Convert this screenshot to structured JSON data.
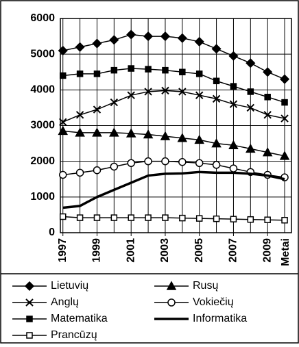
{
  "chart_data": {
    "type": "line",
    "x": [
      1997,
      1998,
      1999,
      2000,
      2001,
      2002,
      2003,
      2004,
      2005,
      2006,
      2007,
      2008,
      2009,
      2010
    ],
    "xlabel": "Metai",
    "xlim": [
      1996.85,
      2010.4
    ],
    "xticks": [
      1997,
      1999,
      2001,
      2003,
      2005,
      2007,
      2009
    ],
    "ylim": [
      0,
      6000
    ],
    "yticks": [
      0,
      1000,
      2000,
      3000,
      4000,
      5000,
      6000
    ],
    "grid": true,
    "series": [
      {
        "name": "Lietuvių",
        "color": "#000000",
        "marker": "diamond",
        "values": [
          5100,
          5200,
          5300,
          5400,
          5550,
          5500,
          5500,
          5450,
          5350,
          5150,
          4950,
          4750,
          4500,
          4300
        ]
      },
      {
        "name": "Rusų",
        "color": "#000000",
        "marker": "triangle",
        "values": [
          2850,
          2800,
          2800,
          2800,
          2780,
          2750,
          2700,
          2650,
          2600,
          2500,
          2450,
          2350,
          2250,
          2150
        ]
      },
      {
        "name": "Anglų",
        "color": "#000000",
        "marker": "x",
        "values": [
          3100,
          3300,
          3450,
          3650,
          3850,
          3950,
          3980,
          3950,
          3850,
          3750,
          3600,
          3500,
          3300,
          3200
        ]
      },
      {
        "name": "Vokiečių",
        "color": "#000000",
        "marker": "circle",
        "values": [
          1620,
          1680,
          1750,
          1850,
          1950,
          2000,
          2000,
          1980,
          1950,
          1900,
          1800,
          1700,
          1620,
          1550
        ]
      },
      {
        "name": "Matematika",
        "color": "#000000",
        "marker": "square",
        "values": [
          4400,
          4450,
          4450,
          4550,
          4600,
          4580,
          4550,
          4500,
          4450,
          4250,
          4100,
          3950,
          3800,
          3650
        ]
      },
      {
        "name": "Informatika",
        "color": "#000000",
        "marker": "none",
        "values": [
          700,
          750,
          1000,
          1200,
          1400,
          1600,
          1650,
          1660,
          1700,
          1680,
          1680,
          1650,
          1600,
          1500
        ]
      },
      {
        "name": "Prancūzų",
        "color": "#000000",
        "marker": "opensquare",
        "values": [
          450,
          420,
          420,
          420,
          420,
          420,
          420,
          410,
          400,
          390,
          380,
          370,
          360,
          350
        ]
      }
    ]
  }
}
